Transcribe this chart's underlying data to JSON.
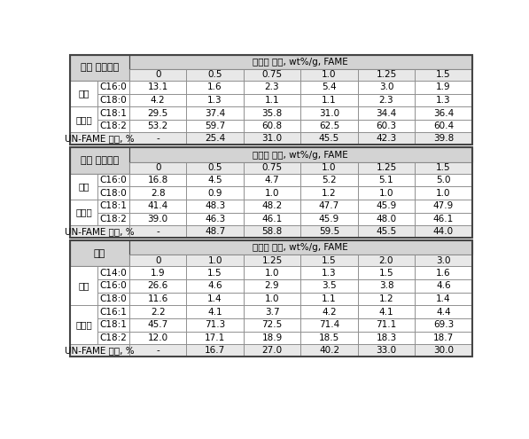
{
  "section1_title": "대두 다크오일",
  "section2_title": "미강 다크오일",
  "section3_title": "돈지",
  "emulsifier_label": "유화제 함량, wt%/g, FAME",
  "unfame_label": "UN-FAME 수율, %",
  "section1_emulsifier": [
    "0",
    "0.5",
    "0.75",
    "1.0",
    "1.25",
    "1.5"
  ],
  "section1_rows": [
    [
      "포화",
      "C16:0",
      "13.1",
      "1.6",
      "2.3",
      "5.4",
      "3.0",
      "1.9"
    ],
    [
      "포화",
      "C18:0",
      "4.2",
      "1.3",
      "1.1",
      "1.1",
      "2.3",
      "1.3"
    ],
    [
      "불포화",
      "C18:1",
      "29.5",
      "37.4",
      "35.8",
      "31.0",
      "34.4",
      "36.4"
    ],
    [
      "불포화",
      "C18:2",
      "53.2",
      "59.7",
      "60.8",
      "62.5",
      "60.3",
      "60.4"
    ]
  ],
  "section1_unfame": [
    "-",
    "25.4",
    "31.0",
    "45.5",
    "42.3",
    "39.8"
  ],
  "section2_emulsifier": [
    "0",
    "0.5",
    "0.75",
    "1.0",
    "1.25",
    "1.5"
  ],
  "section2_rows": [
    [
      "포화",
      "C16:0",
      "16.8",
      "4.5",
      "4.7",
      "5.2",
      "5.1",
      "5.0"
    ],
    [
      "포화",
      "C18:0",
      "2.8",
      "0.9",
      "1.0",
      "1.2",
      "1.0",
      "1.0"
    ],
    [
      "불포화",
      "C18:1",
      "41.4",
      "48.3",
      "48.2",
      "47.7",
      "45.9",
      "47.9"
    ],
    [
      "불포화",
      "C18:2",
      "39.0",
      "46.3",
      "46.1",
      "45.9",
      "48.0",
      "46.1"
    ]
  ],
  "section2_unfame": [
    "-",
    "48.7",
    "58.8",
    "59.5",
    "45.5",
    "44.0"
  ],
  "section3_emulsifier": [
    "0",
    "1.0",
    "1.25",
    "1.5",
    "2.0",
    "3.0"
  ],
  "section3_rows": [
    [
      "포화",
      "C14:0",
      "1.9",
      "1.5",
      "1.0",
      "1.3",
      "1.5",
      "1.6"
    ],
    [
      "포화",
      "C16:0",
      "26.6",
      "4.6",
      "2.9",
      "3.5",
      "3.8",
      "4.6"
    ],
    [
      "포화",
      "C18:0",
      "11.6",
      "1.4",
      "1.0",
      "1.1",
      "1.2",
      "1.4"
    ],
    [
      "불포화",
      "C16:1",
      "2.2",
      "4.1",
      "3.7",
      "4.2",
      "4.1",
      "4.4"
    ],
    [
      "불포화",
      "C18:1",
      "45.7",
      "71.3",
      "72.5",
      "71.4",
      "71.1",
      "69.3"
    ],
    [
      "불포화",
      "C18:2",
      "12.0",
      "17.1",
      "18.9",
      "18.5",
      "18.3",
      "18.7"
    ]
  ],
  "section3_unfame": [
    "-",
    "16.7",
    "27.0",
    "40.2",
    "33.0",
    "30.0"
  ],
  "header_bg": "#d3d3d3",
  "subheader_bg": "#e8e8e8",
  "white_bg": "#ffffff",
  "unfame_bg": "#e8e8e8",
  "text_color": "#000000",
  "border_color": "#888888",
  "thick_border": "#444444"
}
